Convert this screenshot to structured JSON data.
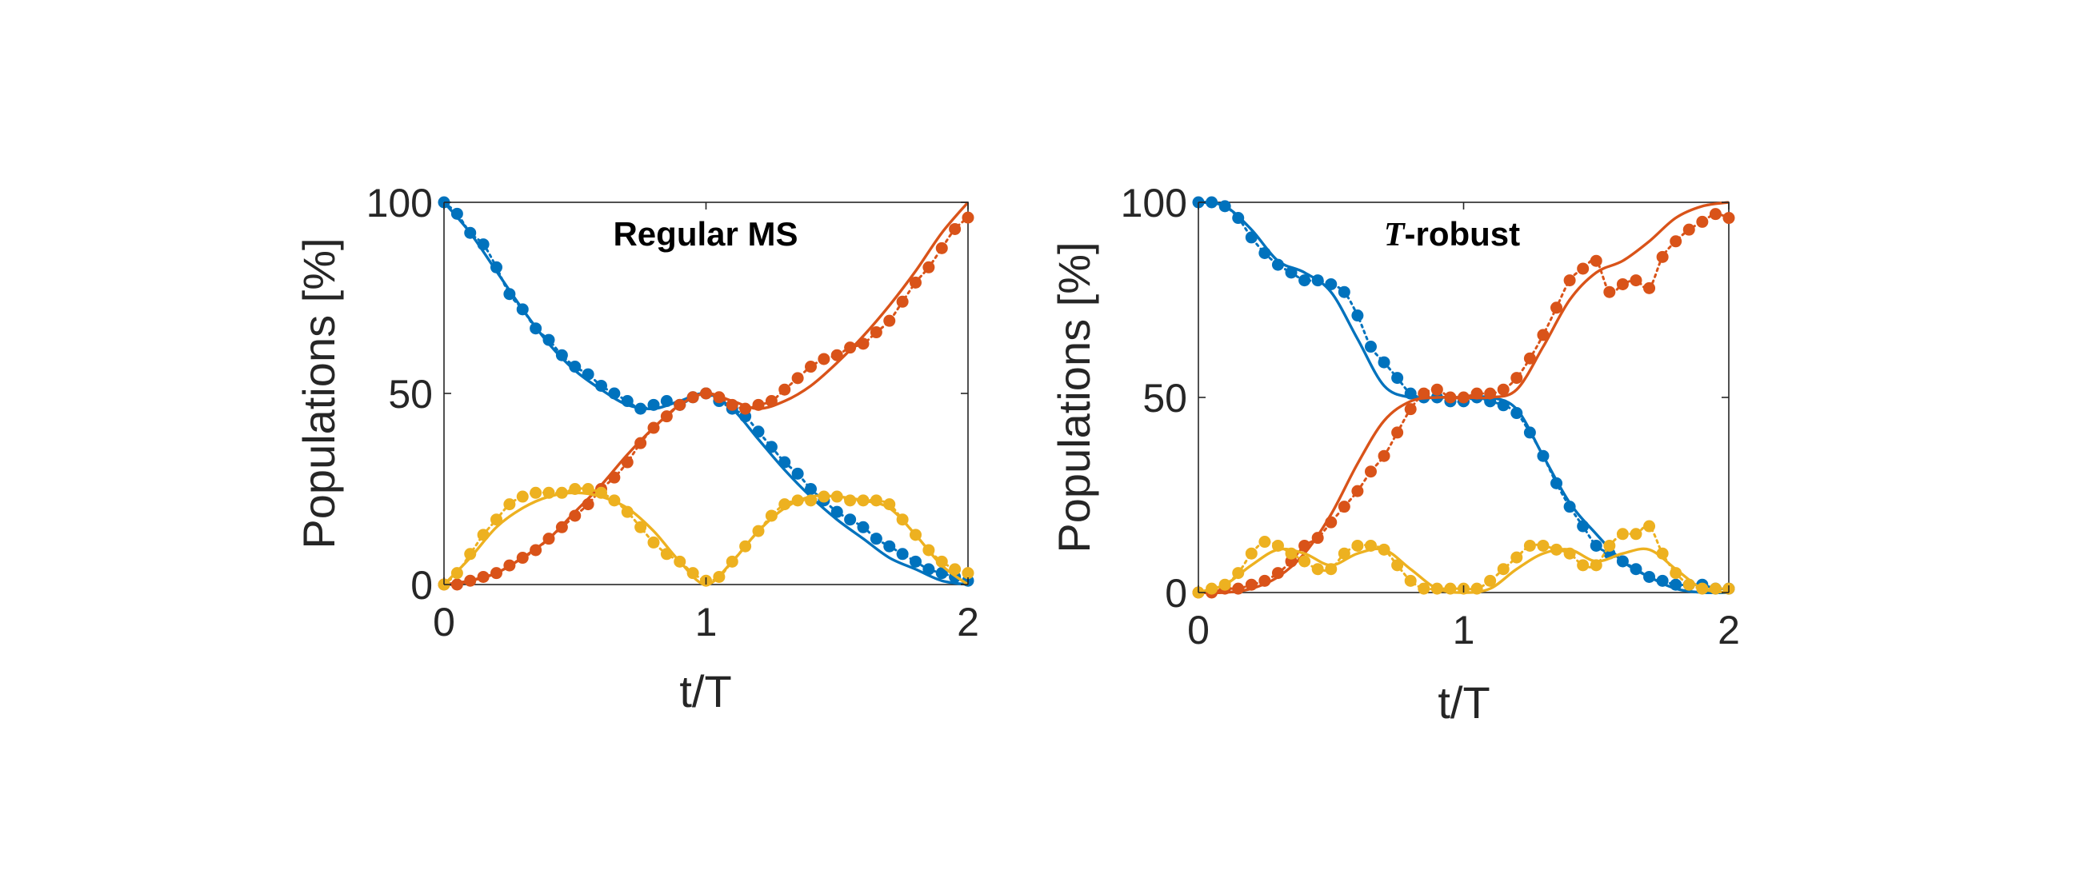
{
  "chart_data": [
    {
      "type": "line",
      "title": "Regular MS",
      "title_emph": "",
      "xlabel": "t/T",
      "ylabel": "Populations [%]",
      "xlim": [
        0,
        2
      ],
      "ylim": [
        0,
        100
      ],
      "xticks": [
        "0",
        "1",
        "2"
      ],
      "yticks": [
        "0",
        "50",
        "100"
      ],
      "grid": false,
      "legend": "none",
      "series": [
        {
          "color": "#0072BD",
          "theory_x": [
            0,
            0.1,
            0.2,
            0.3,
            0.4,
            0.5,
            0.6,
            0.7,
            0.8,
            0.9,
            1.0,
            1.1,
            1.2,
            1.3,
            1.4,
            1.5,
            1.6,
            1.7,
            1.8,
            1.9,
            2.0
          ],
          "theory_y": [
            100,
            92,
            82,
            72,
            63,
            56,
            51,
            47,
            46,
            48,
            50,
            46,
            38,
            30,
            23,
            17,
            12,
            7,
            4,
            1,
            0
          ],
          "measured_x": [
            0,
            0.05,
            0.1,
            0.15,
            0.2,
            0.25,
            0.3,
            0.35,
            0.4,
            0.45,
            0.5,
            0.55,
            0.6,
            0.65,
            0.7,
            0.75,
            0.8,
            0.85,
            0.9,
            0.95,
            1.0,
            1.05,
            1.1,
            1.15,
            1.2,
            1.25,
            1.3,
            1.35,
            1.4,
            1.45,
            1.5,
            1.55,
            1.6,
            1.65,
            1.7,
            1.75,
            1.8,
            1.85,
            1.9,
            1.95,
            2.0
          ],
          "measured_y": [
            100,
            97,
            92,
            89,
            83,
            76,
            72,
            67,
            64,
            60,
            57,
            55,
            52,
            50,
            48,
            46,
            47,
            48,
            47,
            49,
            50,
            48,
            46,
            44,
            40,
            36,
            32,
            29,
            25,
            22,
            19,
            17,
            15,
            12,
            10,
            8,
            6,
            4,
            3,
            2,
            1
          ]
        },
        {
          "color": "#D95319",
          "theory_x": [
            0,
            0.1,
            0.2,
            0.3,
            0.4,
            0.5,
            0.6,
            0.7,
            0.8,
            0.9,
            1.0,
            1.1,
            1.2,
            1.3,
            1.4,
            1.5,
            1.6,
            1.7,
            1.8,
            1.9,
            2.0
          ],
          "theory_y": [
            0,
            1,
            3,
            7,
            12,
            19,
            26,
            34,
            41,
            47,
            50,
            48,
            46,
            48,
            52,
            58,
            65,
            73,
            82,
            92,
            100
          ],
          "measured_x": [
            0,
            0.05,
            0.1,
            0.15,
            0.2,
            0.25,
            0.3,
            0.35,
            0.4,
            0.45,
            0.5,
            0.55,
            0.6,
            0.65,
            0.7,
            0.75,
            0.8,
            0.85,
            0.9,
            0.95,
            1.0,
            1.05,
            1.1,
            1.15,
            1.2,
            1.25,
            1.3,
            1.35,
            1.4,
            1.45,
            1.5,
            1.55,
            1.6,
            1.65,
            1.7,
            1.75,
            1.8,
            1.85,
            1.9,
            1.95,
            2.0
          ],
          "measured_y": [
            0,
            0,
            1,
            2,
            3,
            5,
            7,
            9,
            12,
            15,
            18,
            21,
            25,
            28,
            32,
            37,
            41,
            44,
            47,
            49,
            50,
            49,
            47,
            46,
            47,
            48,
            51,
            54,
            57,
            59,
            60,
            62,
            63,
            66,
            69,
            74,
            79,
            83,
            88,
            93,
            96
          ]
        },
        {
          "color": "#EDB120",
          "theory_x": [
            0,
            0.1,
            0.2,
            0.3,
            0.4,
            0.5,
            0.6,
            0.7,
            0.8,
            0.9,
            1.0,
            1.1,
            1.2,
            1.3,
            1.4,
            1.5,
            1.6,
            1.7,
            1.8,
            1.9,
            2.0
          ],
          "theory_y": [
            0,
            7,
            15,
            20,
            23,
            24,
            23,
            20,
            14,
            6,
            0,
            6,
            14,
            20,
            23,
            23,
            22,
            20,
            13,
            5,
            0
          ],
          "measured_x": [
            0,
            0.05,
            0.1,
            0.15,
            0.2,
            0.25,
            0.3,
            0.35,
            0.4,
            0.45,
            0.5,
            0.55,
            0.6,
            0.65,
            0.7,
            0.75,
            0.8,
            0.85,
            0.9,
            0.95,
            1.0,
            1.05,
            1.1,
            1.15,
            1.2,
            1.25,
            1.3,
            1.35,
            1.4,
            1.45,
            1.5,
            1.55,
            1.6,
            1.65,
            1.7,
            1.75,
            1.8,
            1.85,
            1.9,
            1.95,
            2.0
          ],
          "measured_y": [
            0,
            3,
            8,
            13,
            17,
            21,
            23,
            24,
            24,
            24,
            25,
            25,
            24,
            22,
            19,
            15,
            11,
            8,
            6,
            3,
            1,
            2,
            6,
            10,
            14,
            18,
            21,
            22,
            22,
            23,
            23,
            22,
            22,
            22,
            21,
            17,
            13,
            9,
            6,
            4,
            3
          ]
        }
      ]
    },
    {
      "type": "line",
      "title": "-robust",
      "title_emph": "T",
      "xlabel": "t/T",
      "ylabel": "Populations [%]",
      "xlim": [
        0,
        2
      ],
      "ylim": [
        0,
        100
      ],
      "xticks": [
        "0",
        "1",
        "2"
      ],
      "yticks": [
        "0",
        "50",
        "100"
      ],
      "grid": false,
      "legend": "none",
      "series": [
        {
          "color": "#0072BD",
          "theory_x": [
            0,
            0.1,
            0.2,
            0.3,
            0.4,
            0.5,
            0.6,
            0.7,
            0.8,
            0.9,
            1.0,
            1.1,
            1.2,
            1.3,
            1.4,
            1.5,
            1.6,
            1.7,
            1.8,
            1.9,
            2.0
          ],
          "theory_y": [
            100,
            99,
            93,
            85,
            82,
            77,
            65,
            53,
            50,
            50,
            50,
            50,
            47,
            35,
            23,
            15,
            8,
            4,
            1,
            0,
            0
          ],
          "measured_x": [
            0,
            0.05,
            0.1,
            0.15,
            0.2,
            0.25,
            0.3,
            0.35,
            0.4,
            0.45,
            0.5,
            0.55,
            0.6,
            0.65,
            0.7,
            0.75,
            0.8,
            0.85,
            0.9,
            0.95,
            1.0,
            1.05,
            1.1,
            1.15,
            1.2,
            1.25,
            1.3,
            1.35,
            1.4,
            1.45,
            1.5,
            1.55,
            1.6,
            1.65,
            1.7,
            1.75,
            1.8,
            1.85,
            1.9,
            1.95,
            2.0
          ],
          "measured_y": [
            100,
            100,
            99,
            96,
            91,
            87,
            84,
            82,
            80,
            80,
            79,
            77,
            71,
            63,
            59,
            55,
            51,
            50,
            50,
            49,
            49,
            50,
            49,
            48,
            46,
            41,
            35,
            28,
            22,
            17,
            12,
            10,
            8,
            6,
            4,
            3,
            2,
            2,
            2,
            1,
            1
          ]
        },
        {
          "color": "#D95319",
          "theory_x": [
            0,
            0.1,
            0.2,
            0.3,
            0.4,
            0.5,
            0.6,
            0.7,
            0.8,
            0.9,
            1.0,
            1.1,
            1.2,
            1.3,
            1.4,
            1.5,
            1.6,
            1.7,
            1.8,
            1.9,
            2.0
          ],
          "theory_y": [
            0,
            0,
            1,
            4,
            10,
            20,
            33,
            44,
            49,
            50,
            50,
            50,
            52,
            63,
            75,
            82,
            85,
            90,
            96,
            99,
            100
          ],
          "measured_x": [
            0,
            0.05,
            0.1,
            0.15,
            0.2,
            0.25,
            0.3,
            0.35,
            0.4,
            0.45,
            0.5,
            0.55,
            0.6,
            0.65,
            0.7,
            0.75,
            0.8,
            0.85,
            0.9,
            0.95,
            1.0,
            1.05,
            1.1,
            1.15,
            1.2,
            1.25,
            1.3,
            1.35,
            1.4,
            1.45,
            1.5,
            1.55,
            1.6,
            1.65,
            1.7,
            1.75,
            1.8,
            1.85,
            1.9,
            1.95,
            2.0
          ],
          "measured_y": [
            0,
            0,
            1,
            1,
            2,
            3,
            5,
            8,
            12,
            14,
            18,
            22,
            26,
            31,
            35,
            41,
            47,
            51,
            52,
            50,
            50,
            51,
            51,
            52,
            55,
            60,
            66,
            73,
            80,
            83,
            85,
            77,
            79,
            80,
            78,
            86,
            90,
            93,
            95,
            97,
            96
          ]
        },
        {
          "color": "#EDB120",
          "theory_x": [
            0,
            0.1,
            0.2,
            0.3,
            0.4,
            0.5,
            0.6,
            0.7,
            0.8,
            0.9,
            1.0,
            1.1,
            1.2,
            1.3,
            1.4,
            1.5,
            1.6,
            1.7,
            1.8,
            1.9,
            2.0
          ],
          "theory_y": [
            0,
            2,
            7,
            11,
            10,
            7,
            10,
            11,
            6,
            1,
            0,
            1,
            6,
            10,
            11,
            8,
            10,
            11,
            6,
            1,
            0
          ],
          "measured_x": [
            0,
            0.05,
            0.1,
            0.15,
            0.2,
            0.25,
            0.3,
            0.35,
            0.4,
            0.45,
            0.5,
            0.55,
            0.6,
            0.65,
            0.7,
            0.75,
            0.8,
            0.85,
            0.9,
            0.95,
            1.0,
            1.05,
            1.1,
            1.15,
            1.2,
            1.25,
            1.3,
            1.35,
            1.4,
            1.45,
            1.5,
            1.55,
            1.6,
            1.65,
            1.7,
            1.75,
            1.8,
            1.85,
            1.9,
            1.95,
            2.0
          ],
          "measured_y": [
            0,
            1,
            2,
            5,
            10,
            13,
            12,
            10,
            8,
            6,
            6,
            10,
            12,
            12,
            11,
            7,
            3,
            1,
            1,
            1,
            1,
            1,
            3,
            6,
            9,
            12,
            12,
            11,
            10,
            7,
            7,
            12,
            15,
            15,
            17,
            10,
            5,
            2,
            1,
            1,
            1
          ]
        }
      ]
    }
  ]
}
